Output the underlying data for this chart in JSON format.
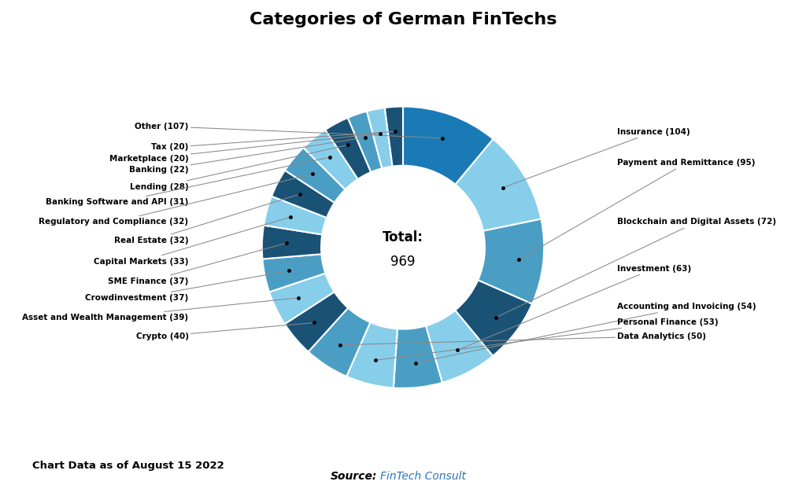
{
  "title": "Categories of German FinTechs",
  "total_text1": "Total:",
  "total_text2": "969",
  "footer_left": "Chart Data as of August 15 2022",
  "footer_source_bold": "Source:",
  "footer_source_link": "FinTech Consult",
  "background_color": "#ffffff",
  "figsize": [
    10.24,
    6.17
  ],
  "dpi": 100,
  "categories": [
    {
      "name": "Other",
      "value": 107,
      "color": "#1A7AB5",
      "side": "left"
    },
    {
      "name": "Insurance",
      "value": 104,
      "color": "#87CEEB",
      "side": "right"
    },
    {
      "name": "Payment and Remittance",
      "value": 95,
      "color": "#4A9EC4",
      "side": "right"
    },
    {
      "name": "Blockchain and Digital Assets",
      "value": 72,
      "color": "#1A5276",
      "side": "right"
    },
    {
      "name": "Investment",
      "value": 63,
      "color": "#87CEEB",
      "side": "right"
    },
    {
      "name": "Accounting and Invoicing",
      "value": 54,
      "color": "#4A9EC4",
      "side": "right"
    },
    {
      "name": "Personal Finance",
      "value": 53,
      "color": "#87CEEB",
      "side": "right"
    },
    {
      "name": "Data Analytics",
      "value": 50,
      "color": "#4A9EC4",
      "side": "right"
    },
    {
      "name": "Crypto",
      "value": 40,
      "color": "#1A5276",
      "side": "left"
    },
    {
      "name": "Asset and Wealth Management",
      "value": 39,
      "color": "#87CEEB",
      "side": "left"
    },
    {
      "name": "Crowdinvestment",
      "value": 37,
      "color": "#4A9EC4",
      "side": "left"
    },
    {
      "name": "SME Finance",
      "value": 37,
      "color": "#1A5276",
      "side": "left"
    },
    {
      "name": "Capital Markets",
      "value": 33,
      "color": "#87CEEB",
      "side": "left"
    },
    {
      "name": "Real Estate",
      "value": 32,
      "color": "#1A5276",
      "side": "left"
    },
    {
      "name": "Regulatory and Compliance",
      "value": 32,
      "color": "#4A9EC4",
      "side": "left"
    },
    {
      "name": "Banking Software and API",
      "value": 31,
      "color": "#87CEEB",
      "side": "left"
    },
    {
      "name": "Lending",
      "value": 28,
      "color": "#1A5276",
      "side": "left"
    },
    {
      "name": "Banking",
      "value": 22,
      "color": "#4A9EC4",
      "side": "left"
    },
    {
      "name": "Marketplace",
      "value": 20,
      "color": "#87CEEB",
      "side": "left"
    },
    {
      "name": "Tax",
      "value": 20,
      "color": "#1A5276",
      "side": "left"
    }
  ],
  "left_label_order": [
    "Other",
    "Tax",
    "Marketplace",
    "Banking",
    "Lending",
    "Banking Software and API",
    "Regulatory and Compliance",
    "Real Estate",
    "Capital Markets",
    "SME Finance",
    "Crowdinvestment",
    "Asset and Wealth Management",
    "Crypto"
  ],
  "right_label_order": [
    "Insurance",
    "Payment and Remittance",
    "Blockchain and Digital Assets",
    "Investment",
    "Accounting and Invoicing",
    "Personal Finance",
    "Data Analytics"
  ],
  "left_y_positions": [
    0.86,
    0.71,
    0.63,
    0.55,
    0.43,
    0.32,
    0.18,
    0.05,
    -0.1,
    -0.24,
    -0.36,
    -0.5,
    -0.63
  ],
  "right_y_positions": [
    0.82,
    0.6,
    0.18,
    -0.15,
    -0.42,
    -0.53,
    -0.63
  ]
}
